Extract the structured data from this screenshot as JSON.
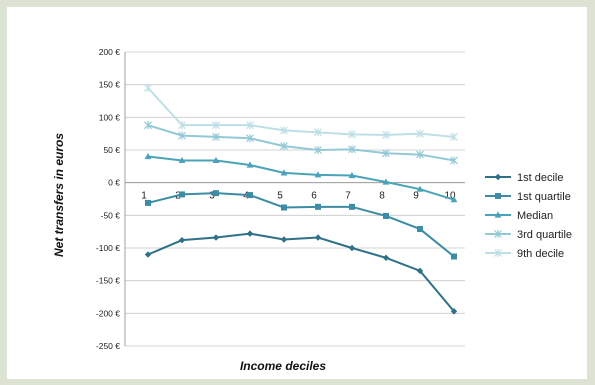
{
  "chart_data": {
    "type": "line",
    "title": "",
    "xlabel": "Income deciles",
    "ylabel": "Net transfers in euros",
    "categories": [
      "1",
      "2",
      "3",
      "4",
      "5",
      "6",
      "7",
      "8",
      "9",
      "10"
    ],
    "ylim": [
      -250,
      200
    ],
    "yticks": [
      200,
      150,
      100,
      50,
      0,
      -50,
      -100,
      -150,
      -200,
      -250
    ],
    "ytick_labels": [
      "200 €",
      "150 €",
      "100 €",
      "50 €",
      "0 €",
      "-50 €",
      "-100 €",
      "-150 €",
      "-200 €",
      "-250 €"
    ],
    "grid": "horizontal",
    "legend_position": "right",
    "series": [
      {
        "name": "1st decile",
        "color": "#2f7189",
        "marker": "diamond",
        "values": [
          -110,
          -88,
          -84,
          -78,
          -87,
          -84,
          -100,
          -115,
          -135,
          -197
        ]
      },
      {
        "name": "1st quartile",
        "color": "#3d8ca5",
        "marker": "square",
        "values": [
          -31,
          -18,
          -16,
          -19,
          -38,
          -37,
          -37,
          -51,
          -71,
          -113
        ]
      },
      {
        "name": "Median",
        "color": "#4aa3b9",
        "marker": "triangle",
        "values": [
          40,
          34,
          34,
          27,
          15,
          12,
          11,
          1,
          -10,
          -26
        ]
      },
      {
        "name": "3rd quartile",
        "color": "#93c9d6",
        "marker": "x",
        "values": [
          88,
          72,
          70,
          68,
          56,
          50,
          51,
          45,
          43,
          34
        ]
      },
      {
        "name": "9th decile",
        "color": "#bfdfe7",
        "marker": "x",
        "values": [
          145,
          88,
          88,
          88,
          80,
          77,
          74,
          73,
          75,
          70
        ]
      }
    ]
  }
}
